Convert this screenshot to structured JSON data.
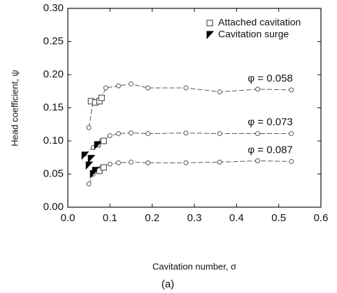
{
  "chart_data": {
    "type": "line",
    "xlabel": "Cavitation number, σ",
    "ylabel": "Head coefficient, ψ",
    "caption": "(a)",
    "xlim": [
      0,
      0.6
    ],
    "ylim": [
      0,
      0.3
    ],
    "xticks": [
      {
        "value": 0,
        "label": "0.0"
      },
      {
        "value": 0.1,
        "label": "0.1"
      },
      {
        "value": 0.2,
        "label": "0.2"
      },
      {
        "value": 0.3,
        "label": "0.3"
      },
      {
        "value": 0.4,
        "label": "0.4"
      },
      {
        "value": 0.5,
        "label": "0.5"
      },
      {
        "value": 0.6,
        "label": "0.6"
      }
    ],
    "yticks": [
      {
        "value": 0,
        "label": "0.00"
      },
      {
        "value": 0.05,
        "label": "0.05"
      },
      {
        "value": 0.1,
        "label": "0.10"
      },
      {
        "value": 0.15,
        "label": "0.15"
      },
      {
        "value": 0.2,
        "label": "0.20"
      },
      {
        "value": 0.25,
        "label": "0.25"
      },
      {
        "value": 0.3,
        "label": "0.30"
      }
    ],
    "series": [
      {
        "name": "φ = 0.058",
        "color": "#555555",
        "marker": "circle",
        "line": true,
        "x": [
          0.05,
          0.06,
          0.07,
          0.08,
          0.09,
          0.12,
          0.15,
          0.19,
          0.28,
          0.36,
          0.45,
          0.53
        ],
        "values": [
          0.12,
          0.16,
          0.16,
          0.165,
          0.18,
          0.183,
          0.186,
          0.18,
          0.18,
          0.174,
          0.178,
          0.177
        ]
      },
      {
        "name": "φ = 0.073",
        "color": "#555555",
        "marker": "circle",
        "line": true,
        "x": [
          0.04,
          0.06,
          0.07,
          0.08,
          0.1,
          0.12,
          0.15,
          0.19,
          0.28,
          0.36,
          0.45,
          0.53
        ],
        "values": [
          0.08,
          0.09,
          0.095,
          0.1,
          0.108,
          0.111,
          0.112,
          0.111,
          0.112,
          0.111,
          0.111,
          0.111
        ]
      },
      {
        "name": "φ = 0.087",
        "color": "#555555",
        "marker": "circle",
        "line": true,
        "x": [
          0.05,
          0.06,
          0.07,
          0.08,
          0.1,
          0.12,
          0.15,
          0.19,
          0.28,
          0.36,
          0.45,
          0.53
        ],
        "values": [
          0.035,
          0.05,
          0.055,
          0.06,
          0.065,
          0.067,
          0.068,
          0.067,
          0.067,
          0.068,
          0.07,
          0.069
        ]
      },
      {
        "name": "Attached cavitation",
        "color": "#333333",
        "marker": "square",
        "line": false,
        "x": [
          0.055,
          0.065,
          0.075,
          0.08,
          0.07,
          0.085,
          0.075,
          0.085
        ],
        "values": [
          0.16,
          0.158,
          0.16,
          0.165,
          0.095,
          0.1,
          0.055,
          0.06
        ]
      },
      {
        "name": "Cavitation surge",
        "color": "#000000",
        "marker": "triangle",
        "line": false,
        "x": [
          0.04,
          0.05,
          0.055,
          0.06,
          0.065,
          0.07
        ],
        "values": [
          0.078,
          0.063,
          0.073,
          0.05,
          0.055,
          0.093
        ]
      }
    ]
  }
}
